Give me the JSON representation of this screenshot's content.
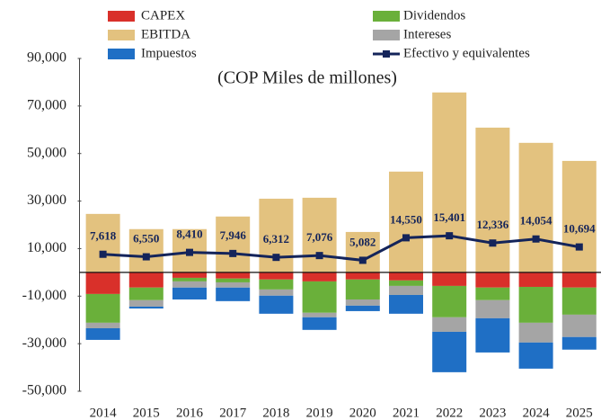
{
  "chart_data": {
    "type": "bar",
    "stacked": true,
    "subtitle": "(COP Miles de millones)",
    "categories": [
      "2014",
      "2015",
      "2016",
      "2017",
      "2018",
      "2019",
      "2020",
      "2021",
      "2022",
      "2023",
      "2024",
      "2025"
    ],
    "series": [
      {
        "name": "CAPEX",
        "color": "#d9302a",
        "values": [
          -9100,
          -6400,
          -2300,
          -2600,
          -3000,
          -3800,
          -3000,
          -3400,
          -5700,
          -6400,
          -6100,
          -6400
        ]
      },
      {
        "name": "Dividendos",
        "color": "#6ab03a",
        "values": [
          -12100,
          -5300,
          -1500,
          -1600,
          -4200,
          -13200,
          -8400,
          -2300,
          -13200,
          -5300,
          -15100,
          -11400
        ]
      },
      {
        "name": "EBITDA",
        "color": "#e3c27f",
        "values": [
          24600,
          18200,
          18200,
          23500,
          31000,
          31400,
          17000,
          42400,
          75700,
          60900,
          54500,
          46900
        ]
      },
      {
        "name": "Intereses",
        "color": "#a5a5a5",
        "values": [
          -2300,
          -2700,
          -2600,
          -2200,
          -2600,
          -1900,
          -2600,
          -3800,
          -6100,
          -7600,
          -8300,
          -9400
        ]
      },
      {
        "name": "Impuestos",
        "color": "#1f6fc5",
        "values": [
          -4900,
          -800,
          -5000,
          -5700,
          -7600,
          -5300,
          -2300,
          -7900,
          -17000,
          -14400,
          -11000,
          -5300
        ]
      },
      {
        "name": "Efectivo y equivalentes",
        "color": "#14245a",
        "type": "line",
        "values": [
          7618,
          6550,
          8410,
          7946,
          6312,
          7076,
          5082,
          14550,
          15401,
          12336,
          14054,
          10694
        ],
        "value_labels": [
          "7,618",
          "6,550",
          "8,410",
          "7,946",
          "6,312",
          "7,076",
          "5,082",
          "14,550",
          "15,401",
          "12,336",
          "14,054",
          "10,694"
        ]
      }
    ],
    "ylim": [
      -50000,
      90000
    ],
    "yticks": [
      {
        "value": -50000,
        "label": "-50,000"
      },
      {
        "value": -30000,
        "label": "-30,000"
      },
      {
        "value": -10000,
        "label": "-10,000"
      },
      {
        "value": 10000,
        "label": "10,000"
      },
      {
        "value": 30000,
        "label": "30,000"
      },
      {
        "value": 50000,
        "label": "50,000"
      },
      {
        "value": 70000,
        "label": "70,000"
      },
      {
        "value": 90000,
        "label": "90,000"
      }
    ],
    "grid": false,
    "legend": "top"
  }
}
